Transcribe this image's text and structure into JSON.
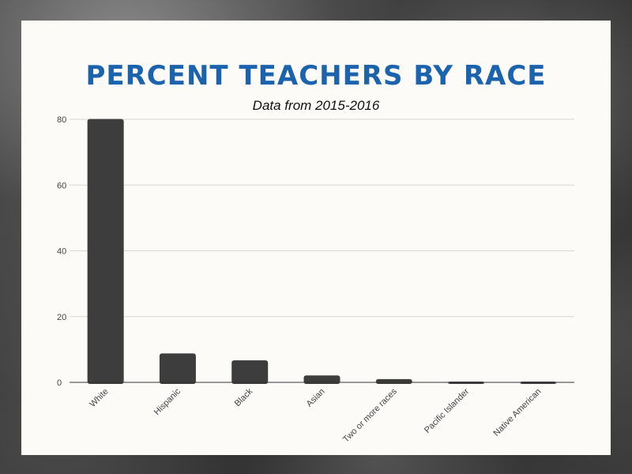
{
  "chart_data": {
    "type": "bar",
    "title": "PERCENT TEACHERS BY RACE",
    "subtitle": "Data from 2015-2016",
    "xlabel": "",
    "ylabel": "",
    "categories": [
      "White",
      "Hispanic",
      "Black",
      "Asian",
      "Two or more races",
      "Pacific Islander",
      "Native American"
    ],
    "values": [
      80.1,
      8.8,
      6.7,
      2.1,
      1.0,
      0.2,
      0.1
    ],
    "ylim": [
      0,
      80
    ],
    "yticks": [
      "0",
      "20",
      "40",
      "60",
      "80"
    ],
    "grid": true,
    "colors": {
      "bar": "#3d3d3d",
      "title": "#1c63ad",
      "grid": "#d8d6d0",
      "axis": "#333333"
    }
  }
}
